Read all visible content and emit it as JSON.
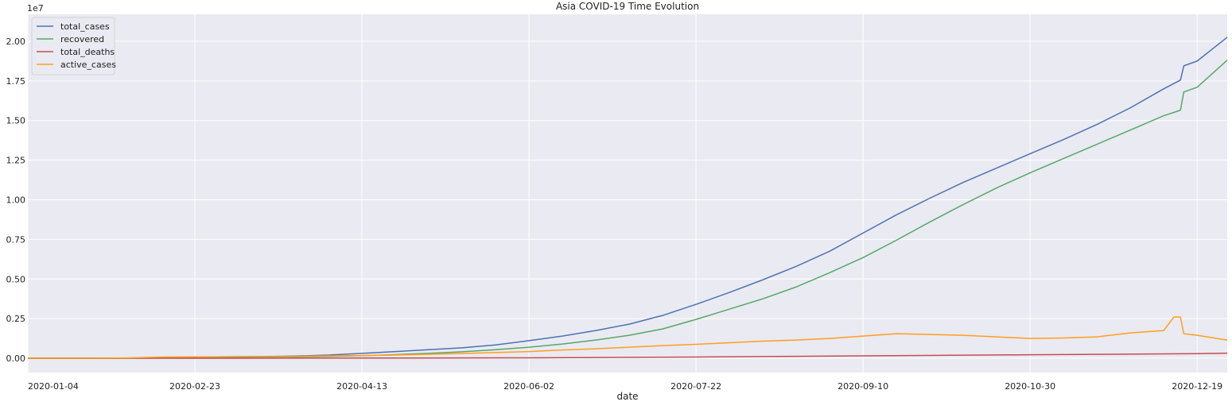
{
  "chart_data": {
    "type": "line",
    "title": "Asia COVID-19 Time Evolution",
    "xlabel": "date",
    "ylabel": "",
    "y_offset_text": "1e7",
    "y_scale_factor": 10000000,
    "xlim": [
      "2020-01-04",
      "2020-12-28"
    ],
    "ylim": [
      -900000,
      21700000
    ],
    "xticks": [
      "2020-01-04",
      "2020-02-23",
      "2020-04-13",
      "2020-06-02",
      "2020-07-22",
      "2020-09-10",
      "2020-10-30",
      "2020-12-19"
    ],
    "yticks": [
      0.0,
      0.25,
      0.5,
      0.75,
      1.0,
      1.25,
      1.5,
      1.75,
      2.0
    ],
    "yticks_display": [
      "0.00",
      "0.25",
      "0.50",
      "0.75",
      "1.00",
      "1.25",
      "1.50",
      "1.75",
      "2.00"
    ],
    "grid": true,
    "background": "#eaeaf2",
    "legend_position": "top-left",
    "series": [
      {
        "name": "total_cases",
        "color": "#4c72b0",
        "points": [
          [
            "2020-01-04",
            0
          ],
          [
            "2020-01-24",
            1000
          ],
          [
            "2020-02-03",
            17000
          ],
          [
            "2020-02-13",
            45000
          ],
          [
            "2020-02-23",
            80000
          ],
          [
            "2020-03-04",
            95000
          ],
          [
            "2020-03-14",
            110000
          ],
          [
            "2020-03-24",
            140000
          ],
          [
            "2020-04-03",
            200000
          ],
          [
            "2020-04-13",
            310000
          ],
          [
            "2020-04-23",
            420000
          ],
          [
            "2020-05-03",
            540000
          ],
          [
            "2020-05-13",
            660000
          ],
          [
            "2020-05-23",
            840000
          ],
          [
            "2020-06-02",
            1110000
          ],
          [
            "2020-06-12",
            1400000
          ],
          [
            "2020-06-22",
            1750000
          ],
          [
            "2020-07-02",
            2150000
          ],
          [
            "2020-07-12",
            2700000
          ],
          [
            "2020-07-22",
            3400000
          ],
          [
            "2020-08-01",
            4150000
          ],
          [
            "2020-08-11",
            4950000
          ],
          [
            "2020-08-21",
            5800000
          ],
          [
            "2020-08-31",
            6750000
          ],
          [
            "2020-09-10",
            7900000
          ],
          [
            "2020-09-20",
            9050000
          ],
          [
            "2020-09-30",
            10100000
          ],
          [
            "2020-10-10",
            11100000
          ],
          [
            "2020-10-20",
            12000000
          ],
          [
            "2020-10-30",
            12900000
          ],
          [
            "2020-11-09",
            13800000
          ],
          [
            "2020-11-19",
            14750000
          ],
          [
            "2020-11-29",
            15800000
          ],
          [
            "2020-12-09",
            17000000
          ],
          [
            "2020-12-14",
            17550000
          ],
          [
            "2020-12-15",
            18450000
          ],
          [
            "2020-12-19",
            18750000
          ],
          [
            "2020-12-28",
            20250000
          ]
        ]
      },
      {
        "name": "recovered",
        "color": "#55a868",
        "points": [
          [
            "2020-01-04",
            0
          ],
          [
            "2020-01-24",
            500
          ],
          [
            "2020-02-03",
            3000
          ],
          [
            "2020-02-13",
            15000
          ],
          [
            "2020-02-23",
            30000
          ],
          [
            "2020-03-04",
            55000
          ],
          [
            "2020-03-14",
            75000
          ],
          [
            "2020-03-24",
            90000
          ],
          [
            "2020-04-03",
            120000
          ],
          [
            "2020-04-13",
            160000
          ],
          [
            "2020-04-23",
            230000
          ],
          [
            "2020-05-03",
            310000
          ],
          [
            "2020-05-13",
            410000
          ],
          [
            "2020-05-23",
            540000
          ],
          [
            "2020-06-02",
            700000
          ],
          [
            "2020-06-12",
            900000
          ],
          [
            "2020-06-22",
            1150000
          ],
          [
            "2020-07-02",
            1450000
          ],
          [
            "2020-07-12",
            1850000
          ],
          [
            "2020-07-22",
            2450000
          ],
          [
            "2020-08-01",
            3100000
          ],
          [
            "2020-08-11",
            3750000
          ],
          [
            "2020-08-21",
            4500000
          ],
          [
            "2020-08-31",
            5400000
          ],
          [
            "2020-09-10",
            6350000
          ],
          [
            "2020-09-20",
            7450000
          ],
          [
            "2020-09-30",
            8600000
          ],
          [
            "2020-10-10",
            9700000
          ],
          [
            "2020-10-20",
            10750000
          ],
          [
            "2020-10-30",
            11700000
          ],
          [
            "2020-11-09",
            12600000
          ],
          [
            "2020-11-19",
            13500000
          ],
          [
            "2020-11-29",
            14400000
          ],
          [
            "2020-12-09",
            15300000
          ],
          [
            "2020-12-14",
            15650000
          ],
          [
            "2020-12-15",
            16800000
          ],
          [
            "2020-12-19",
            17100000
          ],
          [
            "2020-12-28",
            18800000
          ]
        ]
      },
      {
        "name": "total_deaths",
        "color": "#c44e52",
        "points": [
          [
            "2020-01-04",
            0
          ],
          [
            "2020-02-23",
            3000
          ],
          [
            "2020-04-13",
            12000
          ],
          [
            "2020-06-02",
            30000
          ],
          [
            "2020-07-22",
            80000
          ],
          [
            "2020-09-10",
            150000
          ],
          [
            "2020-10-30",
            220000
          ],
          [
            "2020-12-19",
            290000
          ],
          [
            "2020-12-28",
            320000
          ]
        ]
      },
      {
        "name": "active_cases",
        "color": "#ff9f1c",
        "points": [
          [
            "2020-01-04",
            0
          ],
          [
            "2020-01-24",
            5000
          ],
          [
            "2020-02-03",
            20000
          ],
          [
            "2020-02-13",
            80000
          ],
          [
            "2020-02-23",
            90000
          ],
          [
            "2020-03-04",
            95000
          ],
          [
            "2020-03-14",
            100000
          ],
          [
            "2020-03-24",
            120000
          ],
          [
            "2020-04-03",
            150000
          ],
          [
            "2020-04-13",
            170000
          ],
          [
            "2020-04-23",
            200000
          ],
          [
            "2020-05-03",
            250000
          ],
          [
            "2020-05-13",
            300000
          ],
          [
            "2020-05-23",
            360000
          ],
          [
            "2020-06-02",
            420000
          ],
          [
            "2020-06-12",
            520000
          ],
          [
            "2020-06-22",
            600000
          ],
          [
            "2020-07-02",
            700000
          ],
          [
            "2020-07-12",
            800000
          ],
          [
            "2020-07-22",
            880000
          ],
          [
            "2020-08-01",
            980000
          ],
          [
            "2020-08-11",
            1080000
          ],
          [
            "2020-08-21",
            1150000
          ],
          [
            "2020-08-31",
            1250000
          ],
          [
            "2020-09-10",
            1400000
          ],
          [
            "2020-09-20",
            1550000
          ],
          [
            "2020-09-30",
            1500000
          ],
          [
            "2020-10-10",
            1450000
          ],
          [
            "2020-10-20",
            1350000
          ],
          [
            "2020-10-30",
            1250000
          ],
          [
            "2020-11-09",
            1280000
          ],
          [
            "2020-11-19",
            1350000
          ],
          [
            "2020-11-29",
            1600000
          ],
          [
            "2020-12-09",
            1750000
          ],
          [
            "2020-12-12",
            2600000
          ],
          [
            "2020-12-14",
            2600000
          ],
          [
            "2020-12-15",
            1550000
          ],
          [
            "2020-12-19",
            1450000
          ],
          [
            "2020-12-28",
            1150000
          ]
        ]
      }
    ]
  }
}
